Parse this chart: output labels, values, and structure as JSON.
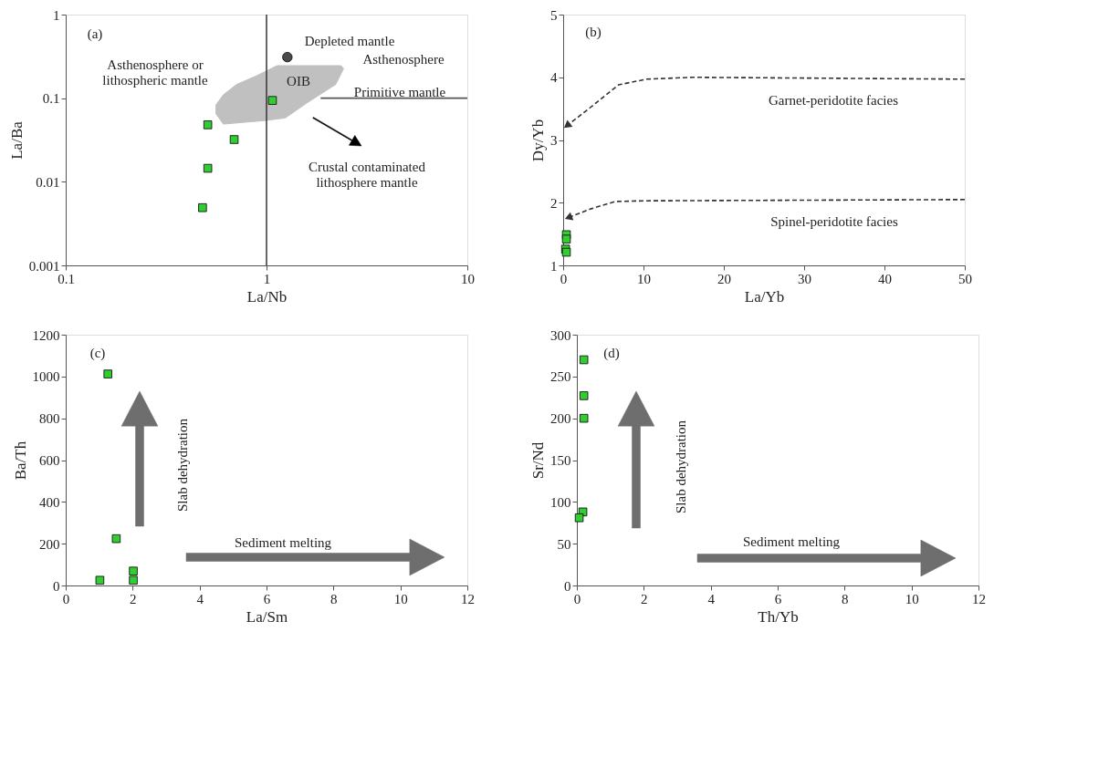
{
  "chart_data": [
    {
      "type": "scatter",
      "xlabel": "La/Nb",
      "ylabel": "La/Ba",
      "log": "xy",
      "xlim": [
        0.1,
        10
      ],
      "ylim": [
        0.001,
        1
      ],
      "xticks": [
        0.1,
        1,
        10
      ],
      "yticks": [
        0.001,
        0.01,
        0.1,
        1
      ],
      "grid": false,
      "ref_lines": [
        {
          "axis": "x",
          "value": 1,
          "color": "#333333"
        }
      ],
      "series": [
        {
          "type": "area",
          "color": "#c0c0c0",
          "x": [
            0.56,
            0.61,
            0.71,
            0.89,
            1.13,
            2.35,
            2.42,
            2.21,
            1.58,
            1.24,
            0.98,
            0.61,
            0.56
          ],
          "values": [
            0.083,
            0.11,
            0.146,
            0.185,
            0.245,
            0.245,
            0.226,
            0.146,
            0.087,
            0.058,
            0.054,
            0.049,
            0.065
          ]
        },
        {
          "type": "line",
          "color": "#555555",
          "x": [
            1.86,
            10
          ],
          "values": [
            0.1,
            0.1
          ]
        },
        {
          "color": "#4a4a4a",
          "marker": "circle",
          "x": [
            1.27
          ],
          "values": [
            0.31
          ]
        },
        {
          "color": "#33cc33",
          "marker": "square",
          "x": [
            0.51,
            0.69,
            0.51,
            0.48,
            1.07
          ],
          "values": [
            0.048,
            0.032,
            0.0145,
            0.0049,
            0.094
          ]
        }
      ],
      "annotations": [
        "(a)",
        "Depleted mantle",
        "Asthenosphere",
        "Asthenosphere or\nlithospheric mantle",
        "OIB",
        "Primitive mantle",
        "Crustal contaminated\nlithosphere mantle"
      ]
    },
    {
      "type": "scatter",
      "xlabel": "La/Yb",
      "ylabel": "Dy/Yb",
      "xlim": [
        0,
        50
      ],
      "ylim": [
        1,
        5
      ],
      "xticks": [
        0,
        10,
        20,
        30,
        40,
        50
      ],
      "yticks": [
        1,
        2,
        3,
        4,
        5
      ],
      "grid": false,
      "series": [
        {
          "type": "line",
          "color": "#333333",
          "line_style": "dashed",
          "x": [
            50,
            16.1,
            10.4,
            6.9,
            3.4,
            0.6
          ],
          "values": [
            3.97,
            4.0,
            3.97,
            3.88,
            3.52,
            3.24
          ]
        },
        {
          "type": "line",
          "color": "#333333",
          "line_style": "dashed",
          "x": [
            50,
            10.4,
            6.5,
            3.4,
            0.8
          ],
          "values": [
            2.05,
            2.03,
            2.02,
            1.9,
            1.77
          ]
        },
        {
          "color": "#33cc33",
          "marker": "square",
          "x": [
            0.4,
            0.4,
            0.3,
            0.4
          ],
          "values": [
            1.49,
            1.42,
            1.26,
            1.21
          ]
        }
      ],
      "annotations": [
        "(b)",
        "Garnet-peridotite facies",
        "Spinel-peridotite facies"
      ]
    },
    {
      "type": "scatter",
      "xlabel": "La/Sm",
      "ylabel": "Ba/Th",
      "xlim": [
        0,
        12
      ],
      "ylim": [
        0,
        1200
      ],
      "xticks": [
        0,
        2,
        4,
        6,
        8,
        10,
        12
      ],
      "yticks": [
        0,
        200,
        400,
        600,
        800,
        1000,
        1200
      ],
      "grid": false,
      "series": [
        {
          "color": "#33cc33",
          "marker": "square",
          "x": [
            1.26,
            1.51,
            1.02,
            2.02,
            2.02
          ],
          "values": [
            1012,
            224,
            25,
            69,
            25
          ]
        }
      ],
      "annotations": [
        "(c)",
        "Slab dehydration",
        "Sediment melting"
      ]
    },
    {
      "type": "scatter",
      "xlabel": "Th/Yb",
      "ylabel": "Sr/Nd",
      "xlim": [
        0,
        12
      ],
      "ylim": [
        0,
        300
      ],
      "xticks": [
        0,
        2,
        4,
        6,
        8,
        10,
        12
      ],
      "yticks": [
        0,
        50,
        100,
        150,
        200,
        250,
        300
      ],
      "grid": false,
      "series": [
        {
          "color": "#33cc33",
          "marker": "square",
          "x": [
            0.21,
            0.21,
            0.21,
            0.18,
            0.07
          ],
          "values": [
            270,
            227,
            200,
            88,
            81
          ]
        }
      ],
      "annotations": [
        "(d)",
        "Slab dehydration",
        "Sediment melting"
      ]
    }
  ]
}
